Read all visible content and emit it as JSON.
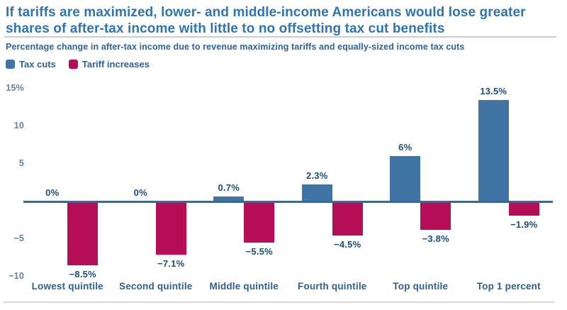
{
  "header": {
    "title": "If tariffs are maximized, lower- and middle-income Americans would lose greater shares of after-tax income with little to no offsetting tax cut benefits",
    "subtitle": "Percentage change in after-tax income due to revenue maximizing tariffs and equally-sized income tax cuts"
  },
  "colors": {
    "title": "#2e75b2",
    "subtitle": "#2a659e",
    "value_label": "#1f4e79",
    "category_label": "#2b6295",
    "tick_label": "#5e83a8",
    "axis_line": "#2e6da4",
    "tax_cuts": "#3f74a5",
    "tariff_increases": "#b50d56"
  },
  "chart_data": {
    "type": "bar",
    "title": "If tariffs are maximized, lower- and middle-income Americans would lose greater shares of after-tax income with little to no offsetting tax cut benefits",
    "subtitle": "Percentage change in after-tax income due to revenue maximizing tariffs and equally-sized income tax cuts",
    "categories": [
      "Lowest quintile",
      "Second quintile",
      "Middle quintile",
      "Fourth quintile",
      "Top quintile",
      "Top 1 percent"
    ],
    "series": [
      {
        "name": "Tax cuts",
        "color": "#3f74a5",
        "values": [
          0,
          0,
          0.7,
          2.3,
          6,
          13.5
        ],
        "labels": [
          "0%",
          "0%",
          "0.7%",
          "2.3%",
          "6%",
          "13.5%"
        ]
      },
      {
        "name": "Tariff increases",
        "color": "#b50d56",
        "values": [
          -8.5,
          -7.1,
          -5.5,
          -4.5,
          -3.8,
          -1.9
        ],
        "labels": [
          "−8.5%",
          "−7.1%",
          "−5.5%",
          "−4.5%",
          "−3.8%",
          "−1.9%"
        ]
      }
    ],
    "ylim": [
      -10,
      15
    ],
    "yticks": [
      {
        "value": 15,
        "label": "15%"
      },
      {
        "value": 10,
        "label": "10"
      },
      {
        "value": 5,
        "label": "5"
      },
      {
        "value": -5,
        "label": "−5"
      },
      {
        "value": -10,
        "label": "−10"
      }
    ],
    "grid": false,
    "legend_position": "top-left",
    "xlabel": "",
    "ylabel": ""
  }
}
